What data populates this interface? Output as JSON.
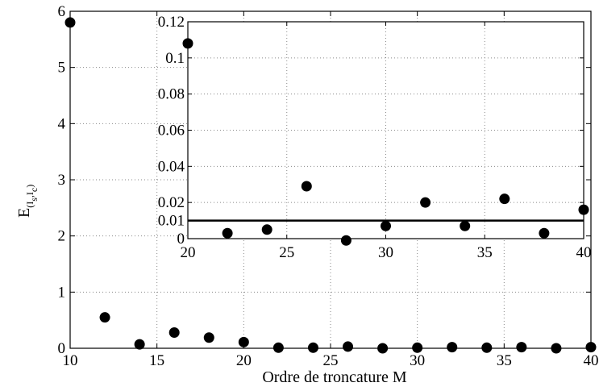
{
  "chart_data": [
    {
      "type": "scatter",
      "role": "main",
      "xlabel": "Ordre de troncature M",
      "ylabel": {
        "base": "E",
        "subscript": "(I",
        "subscript_sub1": "s",
        "subscript_mid": ",I",
        "subscript_sub2": "c",
        "subscript_end": ")"
      },
      "xlim": [
        10,
        40
      ],
      "ylim": [
        0,
        6
      ],
      "xticks": [
        10,
        15,
        20,
        25,
        30,
        35,
        40
      ],
      "yticks": [
        0,
        1,
        2,
        3,
        4,
        5,
        6
      ],
      "grid": true,
      "x": [
        10,
        12,
        14,
        16,
        18,
        20,
        22,
        24,
        26,
        28,
        30,
        32,
        34,
        36,
        38,
        40
      ],
      "y": [
        5.8,
        0.55,
        0.07,
        0.28,
        0.19,
        0.11,
        0.01,
        0.01,
        0.03,
        0.0,
        0.01,
        0.02,
        0.01,
        0.02,
        0.0,
        0.02
      ],
      "marker_color": "#000000"
    },
    {
      "type": "scatter",
      "role": "inset",
      "xlim": [
        20,
        40
      ],
      "ylim": [
        0,
        0.12
      ],
      "xticks": [
        20,
        25,
        30,
        35,
        40
      ],
      "yticks": [
        0,
        0.01,
        0.02,
        0.04,
        0.06,
        0.08,
        0.1,
        0.12
      ],
      "ytick_labels": [
        "0",
        "0.01",
        "0.02",
        "0.04",
        "0.06",
        "0.08",
        "0.1",
        "0.12"
      ],
      "grid": true,
      "x": [
        20,
        22,
        24,
        26,
        28,
        30,
        32,
        34,
        36,
        38,
        40
      ],
      "y": [
        0.108,
        0.003,
        0.005,
        0.029,
        -0.001,
        0.007,
        0.02,
        0.007,
        0.022,
        0.003,
        0.016
      ],
      "reference_line": {
        "y": 0.01,
        "color": "#000000"
      },
      "marker_color": "#000000"
    }
  ]
}
